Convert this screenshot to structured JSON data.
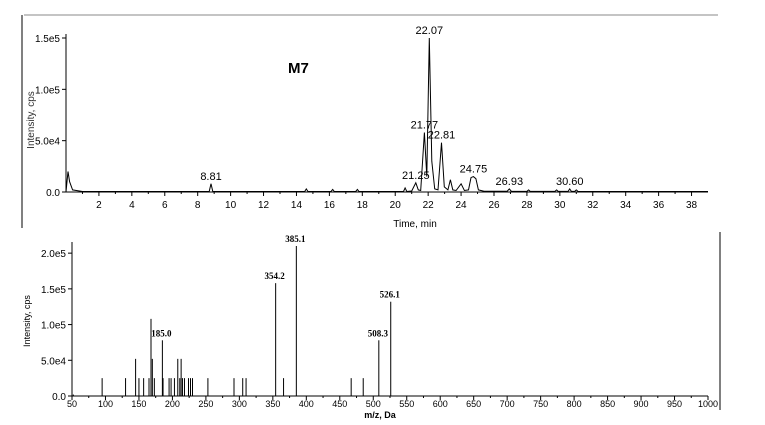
{
  "chart_data": [
    {
      "type": "line",
      "label": "M7",
      "xlabel": "Time, min",
      "ylabel": "Intensity, cps",
      "xlim": [
        0,
        39
      ],
      "ylim": [
        0,
        150000
      ],
      "x_ticks": [
        "2",
        "4",
        "6",
        "8",
        "10",
        "12",
        "14",
        "16",
        "18",
        "20",
        "22",
        "24",
        "26",
        "28",
        "30",
        "32",
        "34",
        "36",
        "38"
      ],
      "y_ticks": [
        {
          "value": 0,
          "label": "0.0"
        },
        {
          "value": 50000,
          "label": "5.0e4"
        },
        {
          "value": 100000,
          "label": "1.0e5"
        },
        {
          "value": 150000,
          "label": "1.5e5"
        }
      ],
      "peak_labels": [
        {
          "x": 8.81,
          "y": 8000,
          "label": "8.81"
        },
        {
          "x": 21.25,
          "y": 9000,
          "label": "21.25"
        },
        {
          "x": 21.77,
          "y": 58000,
          "label": "21.77"
        },
        {
          "x": 22.07,
          "y": 150000,
          "label": "22.07"
        },
        {
          "x": 22.81,
          "y": 48000,
          "label": "22.81"
        },
        {
          "x": 24.75,
          "y": 15000,
          "label": "24.75"
        },
        {
          "x": 26.93,
          "y": 3000,
          "label": "26.93"
        },
        {
          "x": 30.6,
          "y": 3000,
          "label": "30.60"
        }
      ],
      "series": [
        {
          "points": [
            [
              0.0,
              0
            ],
            [
              0.12,
              20000
            ],
            [
              0.22,
              10000
            ],
            [
              0.4,
              2000
            ],
            [
              1.0,
              500
            ],
            [
              5.0,
              500
            ],
            [
              8.7,
              500
            ],
            [
              8.81,
              8000
            ],
            [
              8.92,
              500
            ],
            [
              14.5,
              500
            ],
            [
              14.6,
              3000
            ],
            [
              14.7,
              500
            ],
            [
              16.1,
              500
            ],
            [
              16.2,
              2500
            ],
            [
              16.3,
              500
            ],
            [
              17.6,
              500
            ],
            [
              17.7,
              2500
            ],
            [
              17.8,
              500
            ],
            [
              20.5,
              500
            ],
            [
              20.6,
              4000
            ],
            [
              20.7,
              500
            ],
            [
              21.0,
              1000
            ],
            [
              21.25,
              9000
            ],
            [
              21.4,
              2000
            ],
            [
              21.55,
              1500
            ],
            [
              21.77,
              58000
            ],
            [
              21.92,
              15000
            ],
            [
              22.07,
              150000
            ],
            [
              22.22,
              30000
            ],
            [
              22.4,
              3000
            ],
            [
              22.6,
              2000
            ],
            [
              22.81,
              48000
            ],
            [
              22.98,
              5000
            ],
            [
              23.2,
              2000
            ],
            [
              23.35,
              12000
            ],
            [
              23.5,
              2000
            ],
            [
              23.7,
              1500
            ],
            [
              24.0,
              8000
            ],
            [
              24.2,
              1500
            ],
            [
              24.45,
              2000
            ],
            [
              24.6,
              14000
            ],
            [
              24.75,
              15000
            ],
            [
              24.9,
              13000
            ],
            [
              25.05,
              2000
            ],
            [
              25.4,
              800
            ],
            [
              26.0,
              800
            ],
            [
              26.8,
              800
            ],
            [
              26.93,
              3000
            ],
            [
              27.05,
              800
            ],
            [
              28.0,
              600
            ],
            [
              28.1,
              2000
            ],
            [
              28.2,
              600
            ],
            [
              29.7,
              600
            ],
            [
              29.8,
              2000
            ],
            [
              29.9,
              600
            ],
            [
              30.5,
              600
            ],
            [
              30.6,
              3000
            ],
            [
              30.7,
              600
            ],
            [
              30.9,
              600
            ],
            [
              31.0,
              2000
            ],
            [
              31.1,
              600
            ],
            [
              33.0,
              500
            ],
            [
              36.0,
              500
            ],
            [
              39.0,
              500
            ]
          ]
        }
      ]
    },
    {
      "type": "bar",
      "xlabel": "m/z, Da",
      "ylabel": "Intensity, cps",
      "xlim": [
        50,
        1000
      ],
      "ylim": [
        0,
        210000
      ],
      "x_ticks": [
        "50",
        "100",
        "150",
        "200",
        "250",
        "300",
        "350",
        "400",
        "450",
        "500",
        "550",
        "600",
        "650",
        "700",
        "750",
        "800",
        "850",
        "900",
        "950",
        "1000"
      ],
      "y_ticks": [
        {
          "value": 0,
          "label": "0.0"
        },
        {
          "value": 50000,
          "label": "5.0e4"
        },
        {
          "value": 100000,
          "label": "1.0e5"
        },
        {
          "value": 150000,
          "label": "1.5e5"
        },
        {
          "value": 200000,
          "label": "2.0e5"
        }
      ],
      "peak_labels": [
        {
          "x": 185.0,
          "label": "185.0"
        },
        {
          "x": 354.2,
          "label": "354.2"
        },
        {
          "x": 385.1,
          "label": "385.1"
        },
        {
          "x": 508.3,
          "label": "508.3"
        },
        {
          "x": 526.1,
          "label": "526.1"
        }
      ],
      "peaks": [
        {
          "x": 52,
          "y": 2000
        },
        {
          "x": 95,
          "y": 25000
        },
        {
          "x": 130,
          "y": 25000
        },
        {
          "x": 145,
          "y": 52000
        },
        {
          "x": 150,
          "y": 25000
        },
        {
          "x": 157,
          "y": 25000
        },
        {
          "x": 165,
          "y": 25000
        },
        {
          "x": 168,
          "y": 108000
        },
        {
          "x": 170,
          "y": 52000
        },
        {
          "x": 173,
          "y": 25000
        },
        {
          "x": 185,
          "y": 78000
        },
        {
          "x": 186,
          "y": 25000
        },
        {
          "x": 195,
          "y": 25000
        },
        {
          "x": 198,
          "y": 25000
        },
        {
          "x": 203,
          "y": 25000
        },
        {
          "x": 208,
          "y": 52000
        },
        {
          "x": 211,
          "y": 25000
        },
        {
          "x": 213,
          "y": 52000
        },
        {
          "x": 215,
          "y": 25000
        },
        {
          "x": 218,
          "y": 25000
        },
        {
          "x": 224,
          "y": 25000
        },
        {
          "x": 227,
          "y": 25000
        },
        {
          "x": 230,
          "y": 25000
        },
        {
          "x": 253,
          "y": 25000
        },
        {
          "x": 292,
          "y": 25000
        },
        {
          "x": 305,
          "y": 25000
        },
        {
          "x": 310,
          "y": 25000
        },
        {
          "x": 354.2,
          "y": 158000
        },
        {
          "x": 366,
          "y": 25000
        },
        {
          "x": 385.1,
          "y": 210000
        },
        {
          "x": 467,
          "y": 25000
        },
        {
          "x": 485,
          "y": 25000
        },
        {
          "x": 508.3,
          "y": 78000
        },
        {
          "x": 526.1,
          "y": 132000
        }
      ]
    }
  ]
}
